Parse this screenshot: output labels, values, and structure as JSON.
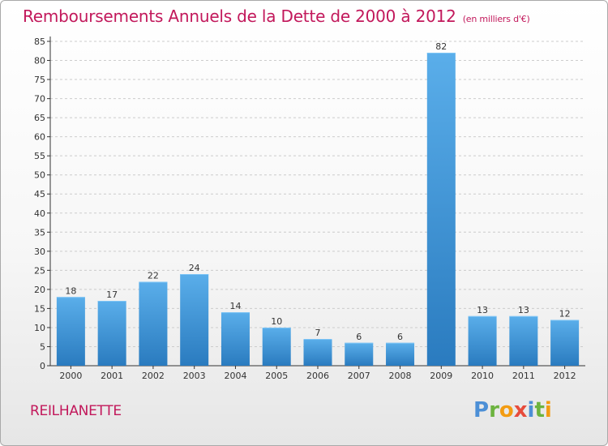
{
  "title": "Remboursements Annuels de la Dette de 2000 à 2012",
  "unit": "(en milliers d'€)",
  "location": "REILHANETTE",
  "brand": {
    "text": "Proxiti",
    "letters": [
      {
        "char": "P",
        "color": "#4c8fd6"
      },
      {
        "char": "r",
        "color": "#6cb33f"
      },
      {
        "char": "o",
        "color": "#f39c12"
      },
      {
        "char": "x",
        "color": "#e74c3c"
      },
      {
        "char": "i",
        "color": "#4c8fd6"
      },
      {
        "char": "t",
        "color": "#6cb33f"
      },
      {
        "char": "i",
        "color": "#f39c12"
      }
    ]
  },
  "colors": {
    "title": "#c2185b",
    "bar_top": "#5aaeea",
    "bar_bottom": "#2a7bbf",
    "grid": "#cccccc",
    "axis": "#333333"
  },
  "chart_data": {
    "type": "bar",
    "categories": [
      "2000",
      "2001",
      "2002",
      "2003",
      "2004",
      "2005",
      "2006",
      "2007",
      "2008",
      "2009",
      "2010",
      "2011",
      "2012"
    ],
    "values": [
      18,
      17,
      22,
      24,
      14,
      10,
      7,
      6,
      6,
      82,
      13,
      13,
      12
    ],
    "ylim": [
      0,
      85
    ],
    "ytick_step": 5,
    "grid": true
  }
}
